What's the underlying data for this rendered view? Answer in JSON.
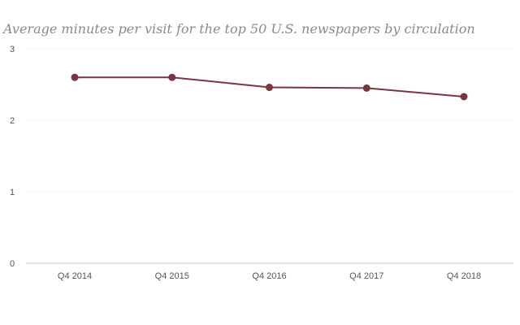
{
  "chart_data": {
    "type": "line",
    "title": "Average minutes per visit for the top 50 U.S. newspapers by circulation",
    "xlabel": "",
    "ylabel": "",
    "categories": [
      "Q4 2014",
      "Q4 2015",
      "Q4 2016",
      "Q4 2017",
      "Q4 2018"
    ],
    "series": [
      {
        "values": [
          2.6,
          2.6,
          2.46,
          2.45,
          2.33
        ]
      }
    ],
    "ylim": [
      0,
      3
    ],
    "yticks": [
      "0",
      "1",
      "2",
      "3"
    ],
    "grid": true,
    "legend": "none",
    "colors": {
      "series": "#7a3640",
      "grid": "#e2e2e2",
      "text": "#555555",
      "title": "#8a8a8a"
    }
  }
}
